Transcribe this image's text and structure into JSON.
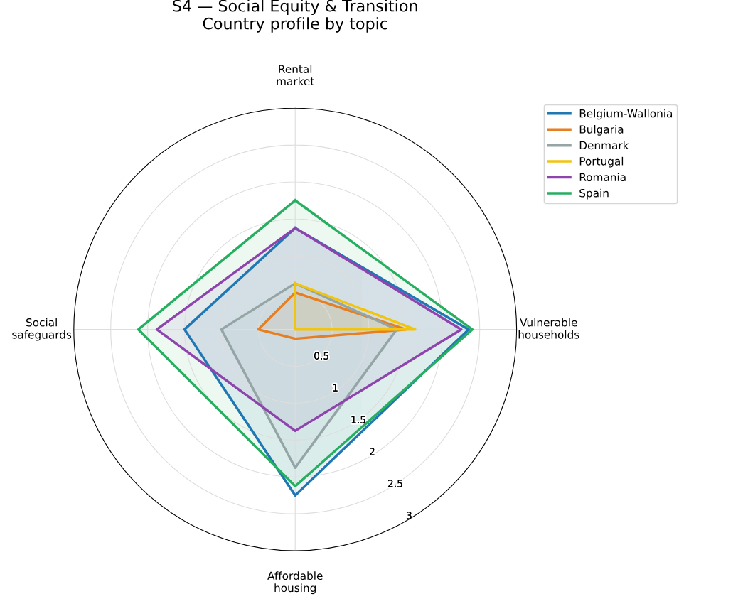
{
  "chart_data": {
    "type": "radar",
    "title": "S4 — Social Equity & Transition\nCountry profile by topic",
    "categories": [
      "Rental\nmarket",
      "Vulnerable\nhouseholds",
      "Affordable\nhousing",
      "Social\nsafeguards"
    ],
    "series": [
      {
        "name": "Belgium-Wallonia",
        "color": "#1f77b4",
        "values": [
          1.375,
          2.35,
          2.25,
          1.5
        ]
      },
      {
        "name": "Bulgaria",
        "color": "#e67e22",
        "values": [
          0.5,
          1.5,
          0.125,
          0.5
        ]
      },
      {
        "name": "Denmark",
        "color": "#95a5a6",
        "values": [
          0.625,
          1.375,
          1.875,
          1.0
        ]
      },
      {
        "name": "Portugal",
        "color": "#f1c40f",
        "values": [
          0.625,
          1.625,
          0,
          0
        ]
      },
      {
        "name": "Romania",
        "color": "#8e44ad",
        "values": [
          1.375,
          2.25,
          1.375,
          1.875
        ]
      },
      {
        "name": "Spain",
        "color": "#27ae60",
        "values": [
          1.75,
          2.4,
          2.125,
          2.125
        ]
      }
    ],
    "ylim": [
      0,
      3
    ],
    "yticks": [
      0.5,
      1,
      1.5,
      2,
      2.5,
      3
    ],
    "grid": true,
    "legend": "top right"
  }
}
